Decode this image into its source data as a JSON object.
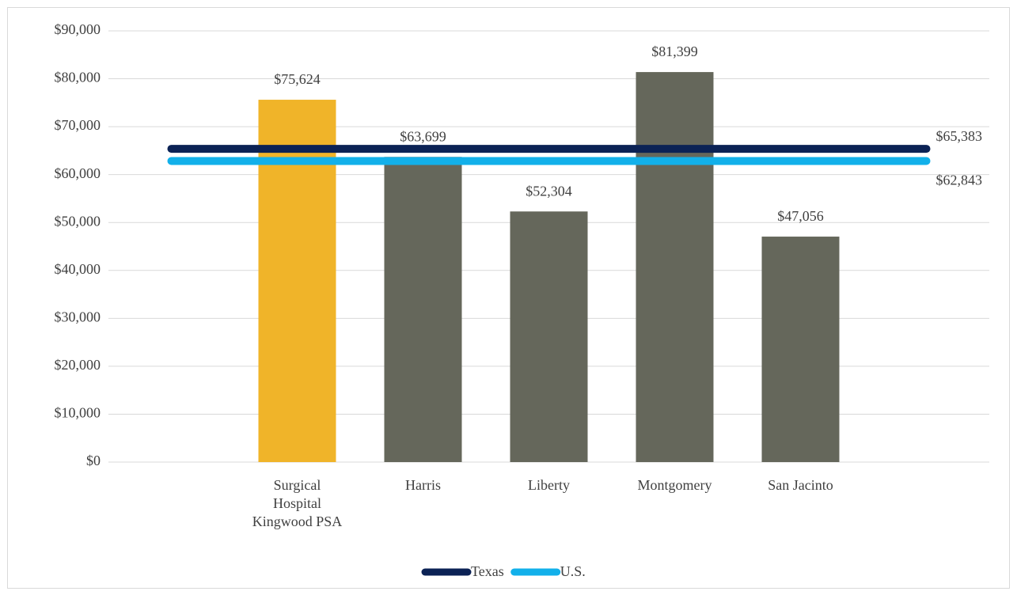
{
  "chart_data": {
    "type": "bar",
    "categories": [
      "Surgical Hospital Kingwood PSA",
      "Harris",
      "Liberty",
      "Montgomery",
      "San Jacinto"
    ],
    "values": [
      75624,
      63699,
      52304,
      81399,
      47056
    ],
    "value_labels": [
      "$75,624",
      "$63,699",
      "$52,304",
      "$81,399",
      "$47,056"
    ],
    "colors": [
      "#f0b429",
      "#65675b",
      "#65675b",
      "#65675b",
      "#65675b"
    ],
    "reference_lines": [
      {
        "name": "Texas",
        "color": "#0b2255",
        "value": 65383,
        "value_label": "$65,383"
      },
      {
        "name": "U.S.",
        "color": "#12b0ea",
        "value": 62843,
        "value_label": "$62,843"
      }
    ],
    "ylim": [
      0,
      90000
    ],
    "yticks": [
      {
        "value": 0,
        "label": "$0"
      },
      {
        "value": 10000,
        "label": "$10,000"
      },
      {
        "value": 20000,
        "label": "$20,000"
      },
      {
        "value": 30000,
        "label": "$30,000"
      },
      {
        "value": 40000,
        "label": "$40,000"
      },
      {
        "value": 50000,
        "label": "$50,000"
      },
      {
        "value": 60000,
        "label": "$60,000"
      },
      {
        "value": 70000,
        "label": "$70,000"
      },
      {
        "value": 80000,
        "label": "$80,000"
      },
      {
        "value": 90000,
        "label": "$90,000"
      }
    ],
    "grid": true,
    "legend": "bottom"
  }
}
